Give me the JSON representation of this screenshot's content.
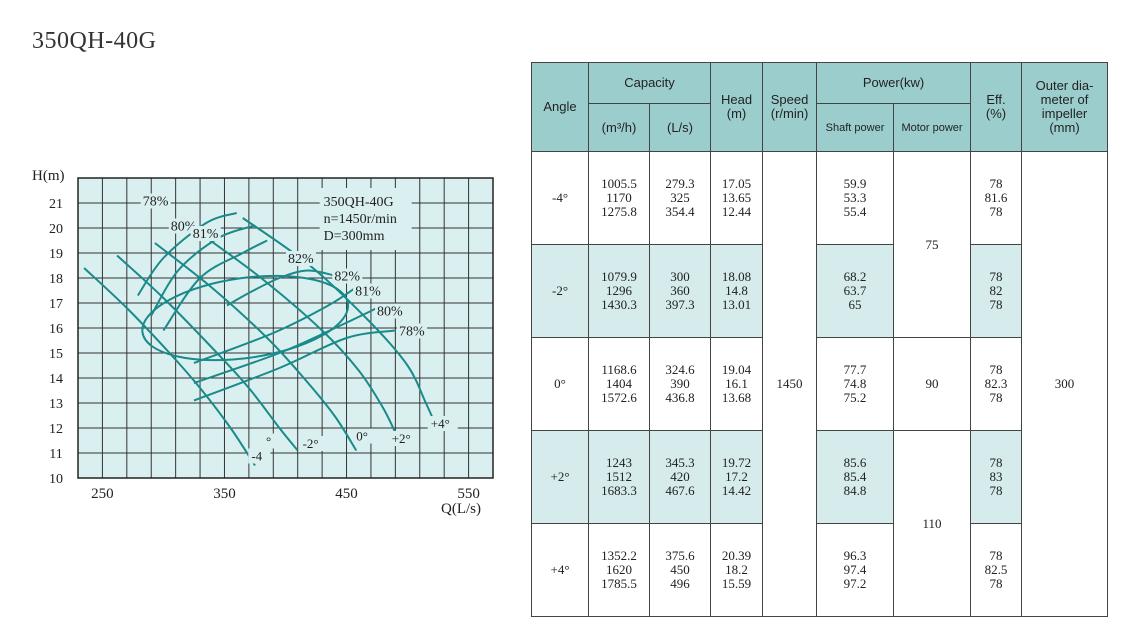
{
  "page_title": "350QH-40G",
  "chart_data": {
    "type": "line",
    "title": "",
    "ylabel": "H(m)",
    "xlabel": "Q(L/s)",
    "xlim": [
      230,
      570
    ],
    "ylim": [
      10,
      22
    ],
    "x_ticks": [
      250,
      350,
      450,
      550
    ],
    "y_ticks": [
      10,
      11,
      12,
      13,
      14,
      15,
      16,
      17,
      18,
      19,
      20,
      21
    ],
    "grid": true,
    "annotation_box": [
      "350QH-40G",
      "n=1450r/min",
      "D=300mm"
    ],
    "series": [
      {
        "name": "-4",
        "points": [
          [
            235,
            18.4
          ],
          [
            270,
            16.8
          ],
          [
            305,
            15.0
          ],
          [
            330,
            13.6
          ],
          [
            355,
            12.0
          ],
          [
            375,
            10.5
          ]
        ]
      },
      {
        "name": "-2°",
        "points": [
          [
            262,
            18.9
          ],
          [
            300,
            17.2
          ],
          [
            340,
            15.2
          ],
          [
            370,
            13.6
          ],
          [
            395,
            12.0
          ],
          [
            410,
            11.1
          ]
        ]
      },
      {
        "name": "0°",
        "points": [
          [
            293,
            19.4
          ],
          [
            340,
            17.6
          ],
          [
            385,
            15.6
          ],
          [
            415,
            14.0
          ],
          [
            440,
            12.5
          ],
          [
            458,
            11.1
          ]
        ]
      },
      {
        "name": "+2°",
        "points": [
          [
            327,
            19.9
          ],
          [
            380,
            18.0
          ],
          [
            430,
            15.9
          ],
          [
            460,
            14.3
          ],
          [
            480,
            12.8
          ],
          [
            492,
            11.6
          ]
        ]
      },
      {
        "name": "+4°",
        "points": [
          [
            365,
            20.4
          ],
          [
            420,
            18.5
          ],
          [
            470,
            16.2
          ],
          [
            500,
            14.5
          ],
          [
            515,
            13.0
          ],
          [
            525,
            11.9
          ]
        ]
      }
    ],
    "efficiency_contours": [
      {
        "label": "78%",
        "label_at": [
          283,
          20.9
        ],
        "points": [
          [
            279,
            17.3
          ],
          [
            300,
            18.8
          ],
          [
            335,
            20.2
          ],
          [
            360,
            20.6
          ]
        ]
      },
      {
        "label": "78%",
        "label_at": [
          493,
          15.7
        ],
        "points": [
          [
            325,
            13.1
          ],
          [
            395,
            14.4
          ],
          [
            450,
            15.6
          ],
          [
            490,
            15.9
          ]
        ]
      },
      {
        "label": "80%",
        "label_at": [
          306,
          19.9
        ],
        "points": [
          [
            290,
            16.5
          ],
          [
            312,
            18.3
          ],
          [
            345,
            19.6
          ],
          [
            375,
            20.1
          ]
        ]
      },
      {
        "label": "80%",
        "label_at": [
          475,
          16.5
        ],
        "points": [
          [
            325,
            13.8
          ],
          [
            395,
            15.0
          ],
          [
            445,
            16.1
          ],
          [
            475,
            16.8
          ]
        ]
      },
      {
        "label": "81%",
        "label_at": [
          324,
          19.6
        ],
        "points": [
          [
            300,
            15.9
          ],
          [
            330,
            18.0
          ],
          [
            365,
            19.0
          ],
          [
            385,
            19.5
          ]
        ]
      },
      {
        "label": "81%",
        "label_at": [
          457,
          17.3
        ],
        "points": [
          [
            325,
            14.6
          ],
          [
            390,
            15.8
          ],
          [
            435,
            16.9
          ],
          [
            460,
            17.7
          ]
        ]
      },
      {
        "label": "82%",
        "label_at": [
          402,
          18.6
        ],
        "points": [
          [
            352,
            16.9
          ],
          [
            370,
            17.4
          ],
          [
            395,
            18.0
          ],
          [
            418,
            18.3
          ],
          [
            440,
            18.1
          ]
        ]
      },
      {
        "label": "82%",
        "label_at": [
          440,
          17.9
        ],
        "points": []
      }
    ],
    "efficiency_ellipse": {
      "label": "82%",
      "center": [
        367,
        16.4
      ],
      "rx": 85,
      "ry": 1.6,
      "rotation": -8
    },
    "blade_angle_labels": [
      {
        "text": "-4",
        "at": [
          372,
          10.7
        ]
      },
      {
        "text": "°",
        "at": [
          384,
          11.3
        ]
      },
      {
        "text": "-2°",
        "at": [
          414,
          11.2
        ]
      },
      {
        "text": "0°",
        "at": [
          458,
          11.5
        ]
      },
      {
        "text": "+2°",
        "at": [
          487,
          11.4
        ]
      },
      {
        "text": "+4°",
        "at": [
          519,
          12.0
        ]
      }
    ]
  },
  "table": {
    "headers": {
      "angle": "Angle",
      "capacity": "Capacity",
      "cap_m3h": "(m³/h)",
      "cap_ls": "(L/s)",
      "head": "Head",
      "head_unit": "(m)",
      "speed": "Speed",
      "speed_unit": "(r/min)",
      "power": "Power(kw)",
      "shaft_power": "Shaft power",
      "motor_power": "Motor power",
      "eff": "Eff.",
      "eff_unit": "(%)",
      "outer_dia": "Outer dia-",
      "outer_dia2": "meter of",
      "outer_dia3": "impeller",
      "outer_dia_unit": "(mm)"
    },
    "speed": "1450",
    "outer_diameter": "300",
    "motor_power": [
      "75",
      "90",
      "110"
    ],
    "rows": [
      {
        "angle": "-4°",
        "cap_m3h": [
          "1005.5",
          "1170",
          "1275.8"
        ],
        "cap_ls": [
          "279.3",
          "325",
          "354.4"
        ],
        "head": [
          "17.05",
          "13.65",
          "12.44"
        ],
        "shaft": [
          "59.9",
          "53.3",
          "55.4"
        ],
        "eff": [
          "78",
          "81.6",
          "78"
        ]
      },
      {
        "angle": "-2°",
        "cap_m3h": [
          "1079.9",
          "1296",
          "1430.3"
        ],
        "cap_ls": [
          "300",
          "360",
          "397.3"
        ],
        "head": [
          "18.08",
          "14.8",
          "13.01"
        ],
        "shaft": [
          "68.2",
          "63.7",
          "65"
        ],
        "eff": [
          "78",
          "82",
          "78"
        ]
      },
      {
        "angle": "0°",
        "cap_m3h": [
          "1168.6",
          "1404",
          "1572.6"
        ],
        "cap_ls": [
          "324.6",
          "390",
          "436.8"
        ],
        "head": [
          "19.04",
          "16.1",
          "13.68"
        ],
        "shaft": [
          "77.7",
          "74.8",
          "75.2"
        ],
        "eff": [
          "78",
          "82.3",
          "78"
        ]
      },
      {
        "angle": "+2°",
        "cap_m3h": [
          "1243",
          "1512",
          "1683.3"
        ],
        "cap_ls": [
          "345.3",
          "420",
          "467.6"
        ],
        "head": [
          "19.72",
          "17.2",
          "14.42"
        ],
        "shaft": [
          "85.6",
          "85.4",
          "84.8"
        ],
        "eff": [
          "78",
          "83",
          "78"
        ]
      },
      {
        "angle": "+4°",
        "cap_m3h": [
          "1352.2",
          "1620",
          "1785.5"
        ],
        "cap_ls": [
          "375.6",
          "450",
          "496"
        ],
        "head": [
          "20.39",
          "18.2",
          "15.59"
        ],
        "shaft": [
          "96.3",
          "97.4",
          "97.2"
        ],
        "eff": [
          "78",
          "82.5",
          "78"
        ]
      }
    ]
  },
  "colors": {
    "curve": "#1a8a8a",
    "plot_bg": "#daf0f0",
    "header_bg": "#9ccdcd",
    "highlight_bg": "#d6ebeb"
  }
}
